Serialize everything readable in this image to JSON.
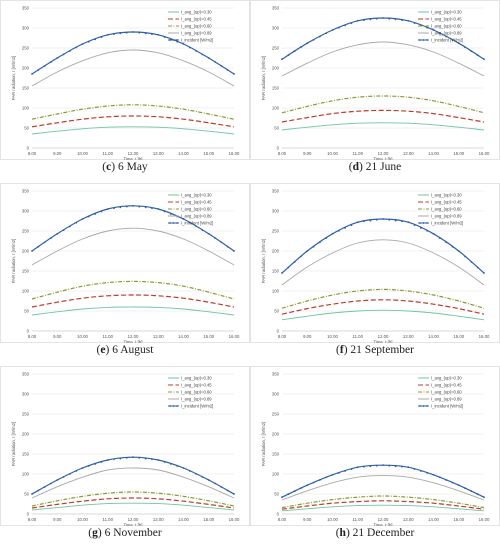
{
  "figure": {
    "panels": [
      {
        "letter": "c",
        "date": "6 May"
      },
      {
        "letter": "d",
        "date": "21 June"
      },
      {
        "letter": "e",
        "date": "6 August"
      },
      {
        "letter": "f",
        "date": "21 September"
      },
      {
        "letter": "g",
        "date": "6 November"
      },
      {
        "letter": "h",
        "date": "21 December"
      }
    ]
  },
  "chart_data": [
    {
      "type": "line",
      "panel": "c",
      "xlabel": "Time, t [h]",
      "ylabel": "PAR radiation, I [W/m2]",
      "x_ticks": [
        "8.00",
        "9.00",
        "10.00",
        "11.00",
        "12.00",
        "13.00",
        "14.00",
        "15.00",
        "16.00"
      ],
      "ylim": [
        0,
        350
      ],
      "y_ticks": [
        0,
        50,
        100,
        150,
        200,
        250,
        300,
        350
      ],
      "x": [
        8,
        9,
        10,
        11,
        12,
        13,
        14,
        15,
        16
      ],
      "legend_position": "top-right",
      "grid": "horizontal",
      "series": [
        {
          "name": "I_avg_(up)=0.30",
          "color": "#6fc5a5",
          "dash": "solid",
          "values": [
            35,
            42,
            48,
            52,
            53,
            52,
            48,
            42,
            35
          ]
        },
        {
          "name": "I_avg_(up)=0.45",
          "color": "#c0392b",
          "dash": "long-dash",
          "values": [
            53,
            63,
            72,
            78,
            80,
            78,
            72,
            63,
            53
          ]
        },
        {
          "name": "I_avg_(up)=0.60",
          "color": "#8a9a30",
          "dash": "dash-dot",
          "values": [
            72,
            85,
            97,
            105,
            108,
            105,
            97,
            85,
            72
          ]
        },
        {
          "name": "I_avg_(up)=0.89",
          "color": "#a8a8a8",
          "dash": "solid",
          "values": [
            155,
            190,
            218,
            238,
            245,
            238,
            218,
            190,
            155
          ]
        },
        {
          "name": "I_incident [W/m2]",
          "color": "#2f5fa7",
          "dash": "marker",
          "values": [
            185,
            225,
            260,
            283,
            290,
            283,
            260,
            225,
            185
          ]
        }
      ]
    },
    {
      "type": "line",
      "panel": "d",
      "xlabel": "Time, t [h]",
      "ylabel": "PAR radiation, I [W/m2]",
      "x_ticks": [
        "8.00",
        "9.00",
        "10.00",
        "11.00",
        "12.00",
        "13.00",
        "14.00",
        "15.00",
        "16.00"
      ],
      "ylim": [
        0,
        350
      ],
      "y_ticks": [
        0,
        50,
        100,
        150,
        200,
        250,
        300,
        350
      ],
      "x": [
        8,
        9,
        10,
        11,
        12,
        13,
        14,
        15,
        16
      ],
      "legend_position": "top-right",
      "grid": "horizontal",
      "series": [
        {
          "name": "I_avg_(up)=0.30",
          "color": "#6fc5a5",
          "dash": "solid",
          "values": [
            45,
            52,
            58,
            62,
            63,
            62,
            58,
            52,
            45
          ]
        },
        {
          "name": "I_avg_(up)=0.45",
          "color": "#c0392b",
          "dash": "long-dash",
          "values": [
            65,
            76,
            86,
            92,
            94,
            92,
            86,
            76,
            65
          ]
        },
        {
          "name": "I_avg_(up)=0.60",
          "color": "#8a9a30",
          "dash": "dash-dot",
          "values": [
            88,
            104,
            118,
            127,
            130,
            127,
            118,
            104,
            88
          ]
        },
        {
          "name": "I_avg_(up)=0.89",
          "color": "#a8a8a8",
          "dash": "solid",
          "values": [
            180,
            212,
            240,
            258,
            265,
            258,
            240,
            212,
            180
          ]
        },
        {
          "name": "I_incident [W/m2]",
          "color": "#2f5fa7",
          "dash": "marker",
          "values": [
            222,
            262,
            295,
            318,
            325,
            318,
            295,
            262,
            222
          ]
        }
      ]
    },
    {
      "type": "line",
      "panel": "e",
      "xlabel": "Time, t [h]",
      "ylabel": "PAR radiation, I [W/m2]",
      "x_ticks": [
        "8.00",
        "9.00",
        "10.00",
        "11.00",
        "12.00",
        "13.00",
        "14.00",
        "15.00",
        "16.00"
      ],
      "ylim": [
        0,
        350
      ],
      "y_ticks": [
        0,
        50,
        100,
        150,
        200,
        250,
        300,
        350
      ],
      "x": [
        8,
        9,
        10,
        11,
        12,
        13,
        14,
        15,
        16
      ],
      "legend_position": "top-right",
      "grid": "horizontal",
      "series": [
        {
          "name": "I_avg_(up)=0.30",
          "color": "#6fc5a5",
          "dash": "solid",
          "values": [
            40,
            48,
            55,
            59,
            60,
            59,
            55,
            48,
            40
          ]
        },
        {
          "name": "I_avg_(up)=0.45",
          "color": "#c0392b",
          "dash": "long-dash",
          "values": [
            60,
            72,
            82,
            88,
            90,
            88,
            82,
            72,
            60
          ]
        },
        {
          "name": "I_avg_(up)=0.60",
          "color": "#8a9a30",
          "dash": "dash-dot",
          "values": [
            80,
            97,
            112,
            121,
            124,
            121,
            112,
            97,
            80
          ]
        },
        {
          "name": "I_avg_(up)=0.89",
          "color": "#a8a8a8",
          "dash": "solid",
          "values": [
            165,
            200,
            230,
            250,
            257,
            250,
            230,
            200,
            165
          ]
        },
        {
          "name": "I_incident [W/m2]",
          "color": "#2f5fa7",
          "dash": "marker",
          "values": [
            200,
            243,
            280,
            305,
            313,
            305,
            280,
            243,
            200
          ]
        }
      ]
    },
    {
      "type": "line",
      "panel": "f",
      "xlabel": "Time, t [h]",
      "ylabel": "PAR radiation, I [W/m2]",
      "x_ticks": [
        "8.00",
        "9.00",
        "10.00",
        "11.00",
        "12.00",
        "13.00",
        "14.00",
        "15.00",
        "16.00"
      ],
      "ylim": [
        0,
        350
      ],
      "y_ticks": [
        0,
        50,
        100,
        150,
        200,
        250,
        300,
        350
      ],
      "x": [
        8,
        9,
        10,
        11,
        12,
        13,
        14,
        15,
        16
      ],
      "legend_position": "top-right",
      "grid": "horizontal",
      "series": [
        {
          "name": "I_avg_(up)=0.30",
          "color": "#6fc5a5",
          "dash": "solid",
          "values": [
            28,
            37,
            45,
            50,
            52,
            50,
            45,
            37,
            28
          ]
        },
        {
          "name": "I_avg_(up)=0.45",
          "color": "#c0392b",
          "dash": "long-dash",
          "values": [
            42,
            56,
            67,
            75,
            78,
            75,
            67,
            56,
            42
          ]
        },
        {
          "name": "I_avg_(up)=0.60",
          "color": "#8a9a30",
          "dash": "dash-dot",
          "values": [
            57,
            75,
            90,
            100,
            104,
            100,
            90,
            75,
            57
          ]
        },
        {
          "name": "I_avg_(up)=0.89",
          "color": "#a8a8a8",
          "dash": "solid",
          "values": [
            115,
            160,
            195,
            220,
            228,
            220,
            195,
            160,
            115
          ]
        },
        {
          "name": "I_incident [W/m2]",
          "color": "#2f5fa7",
          "dash": "marker",
          "values": [
            145,
            200,
            243,
            272,
            280,
            272,
            243,
            200,
            145
          ]
        }
      ]
    },
    {
      "type": "line",
      "panel": "g",
      "xlabel": "Time, t [h]",
      "ylabel": "PAR radiation, I [W/m2]",
      "x_ticks": [
        "8.00",
        "9.00",
        "10.00",
        "11.00",
        "12.00",
        "13.00",
        "14.00",
        "15.00",
        "16.00"
      ],
      "ylim": [
        0,
        350
      ],
      "y_ticks": [
        0,
        50,
        100,
        150,
        200,
        250,
        300,
        350
      ],
      "x": [
        8,
        9,
        10,
        11,
        12,
        13,
        14,
        15,
        16
      ],
      "legend_position": "top-right",
      "grid": "horizontal",
      "series": [
        {
          "name": "I_avg_(up)=0.30",
          "color": "#6fc5a5",
          "dash": "solid",
          "values": [
            10,
            16,
            22,
            26,
            27,
            26,
            22,
            16,
            10
          ]
        },
        {
          "name": "I_avg_(up)=0.45",
          "color": "#c0392b",
          "dash": "long-dash",
          "values": [
            15,
            24,
            32,
            38,
            40,
            38,
            32,
            24,
            15
          ]
        },
        {
          "name": "I_avg_(up)=0.60",
          "color": "#8a9a30",
          "dash": "dash-dot",
          "values": [
            20,
            33,
            44,
            52,
            55,
            52,
            44,
            33,
            20
          ]
        },
        {
          "name": "I_avg_(up)=0.89",
          "color": "#a8a8a8",
          "dash": "solid",
          "values": [
            40,
            68,
            92,
            110,
            115,
            110,
            92,
            68,
            40
          ]
        },
        {
          "name": "I_incident [W/m2]",
          "color": "#2f5fa7",
          "dash": "marker",
          "values": [
            50,
            85,
            115,
            135,
            142,
            135,
            115,
            85,
            50
          ]
        }
      ]
    },
    {
      "type": "line",
      "panel": "h",
      "xlabel": "Time, t [h]",
      "ylabel": "PAR radiation, I [W/m2]",
      "x_ticks": [
        "8.00",
        "9.00",
        "10.00",
        "11.00",
        "12.00",
        "13.00",
        "14.00",
        "15.00",
        "16.00"
      ],
      "ylim": [
        0,
        350
      ],
      "y_ticks": [
        0,
        50,
        100,
        150,
        200,
        250,
        300,
        350
      ],
      "x": [
        8,
        9,
        10,
        11,
        12,
        13,
        14,
        15,
        16
      ],
      "legend_position": "top-right",
      "grid": "horizontal",
      "series": [
        {
          "name": "I_avg_(up)=0.30",
          "color": "#6fc5a5",
          "dash": "solid",
          "values": [
            8,
            13,
            18,
            21,
            22,
            21,
            18,
            13,
            8
          ]
        },
        {
          "name": "I_avg_(up)=0.45",
          "color": "#c0392b",
          "dash": "long-dash",
          "values": [
            12,
            20,
            27,
            31,
            33,
            31,
            27,
            20,
            12
          ]
        },
        {
          "name": "I_avg_(up)=0.60",
          "color": "#8a9a30",
          "dash": "dash-dot",
          "values": [
            16,
            27,
            36,
            42,
            45,
            42,
            36,
            27,
            16
          ]
        },
        {
          "name": "I_avg_(up)=0.89",
          "color": "#a8a8a8",
          "dash": "solid",
          "values": [
            35,
            58,
            78,
            92,
            96,
            92,
            78,
            58,
            35
          ]
        },
        {
          "name": "I_incident [W/m2]",
          "color": "#2f5fa7",
          "dash": "marker",
          "values": [
            42,
            72,
            98,
            117,
            122,
            117,
            98,
            72,
            42
          ]
        }
      ]
    }
  ]
}
